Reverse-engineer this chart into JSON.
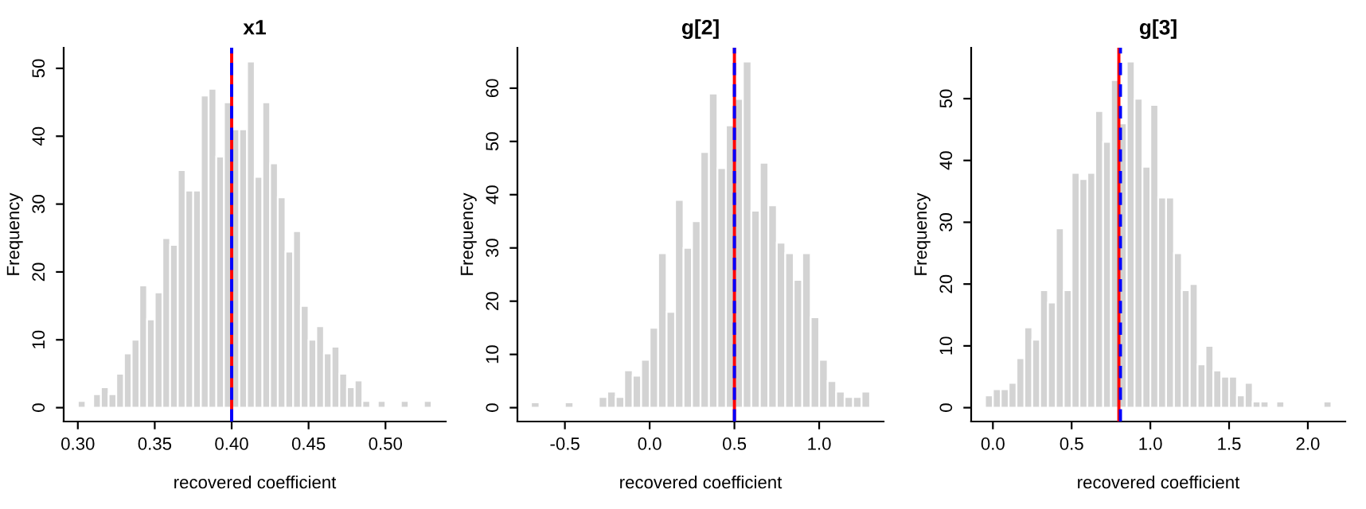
{
  "chart_data": [
    {
      "type": "histogram",
      "title": "x1",
      "xlabel": "recovered coefficient",
      "ylabel": "Frequency",
      "color": "#d3d3d3",
      "bins": [
        0.3,
        0.305,
        0.31,
        0.315,
        0.32,
        0.325,
        0.33,
        0.335,
        0.34,
        0.345,
        0.35,
        0.355,
        0.36,
        0.365,
        0.37,
        0.375,
        0.38,
        0.385,
        0.39,
        0.395,
        0.4,
        0.405,
        0.41,
        0.415,
        0.42,
        0.425,
        0.43,
        0.435,
        0.44,
        0.445,
        0.45,
        0.455,
        0.46,
        0.465,
        0.47,
        0.475,
        0.48,
        0.485,
        0.49,
        0.495,
        0.5,
        0.505,
        0.51,
        0.515,
        0.52,
        0.525,
        0.53
      ],
      "values": [
        1,
        0,
        2,
        3,
        2,
        5,
        8,
        10,
        18,
        13,
        17,
        25,
        24,
        35,
        32,
        32,
        46,
        47,
        37,
        45,
        41,
        41,
        51,
        34,
        45,
        36,
        31,
        23,
        26,
        15,
        10,
        12,
        8,
        9,
        5,
        3,
        4,
        1,
        0,
        1,
        0,
        0,
        1,
        0,
        0,
        1
      ],
      "xlim": [
        0.2908,
        0.5392
      ],
      "ylim": [
        -2.04,
        53.04
      ],
      "xticks": [
        {
          "value": 0.3,
          "label": "0.30"
        },
        {
          "value": 0.35,
          "label": "0.35"
        },
        {
          "value": 0.4,
          "label": "0.40"
        },
        {
          "value": 0.45,
          "label": "0.45"
        },
        {
          "value": 0.5,
          "label": "0.50"
        }
      ],
      "yticks": [
        0,
        10,
        20,
        30,
        40,
        50
      ],
      "ref_lines": [
        {
          "axis": "x",
          "value": 0.4,
          "color": "#ff0000",
          "line_style": "solid"
        },
        {
          "axis": "x",
          "value": 0.4,
          "color": "#0000ff",
          "line_style": "dashed"
        }
      ]
    },
    {
      "type": "histogram",
      "title": "g[2]",
      "xlabel": "recovered coefficient",
      "ylabel": "Frequency",
      "color": "#d3d3d3",
      "bins": [
        -0.7,
        -0.65,
        -0.6,
        -0.55,
        -0.5,
        -0.45,
        -0.4,
        -0.35,
        -0.3,
        -0.25,
        -0.2,
        -0.15,
        -0.1,
        -0.05,
        0,
        0.05,
        0.1,
        0.15,
        0.2,
        0.25,
        0.3,
        0.35,
        0.4,
        0.45,
        0.5,
        0.55,
        0.6,
        0.65,
        0.7,
        0.75,
        0.8,
        0.85,
        0.9,
        0.95,
        1,
        1.05,
        1.1,
        1.15,
        1.2,
        1.25,
        1.3
      ],
      "values": [
        1,
        0,
        0,
        0,
        1,
        0,
        0,
        0,
        2,
        3,
        2,
        7,
        6,
        9,
        15,
        29,
        18,
        39,
        30,
        35,
        48,
        59,
        45,
        53,
        58,
        65,
        37,
        46,
        38,
        31,
        29,
        24,
        29,
        17,
        9,
        5,
        3,
        2,
        2,
        3
      ],
      "xlim": [
        -0.78,
        1.38
      ],
      "ylim": [
        -2.6,
        67.6
      ],
      "xticks": [
        {
          "value": -0.5,
          "label": "-0.5"
        },
        {
          "value": 0,
          "label": "0.0"
        },
        {
          "value": 0.5,
          "label": "0.5"
        },
        {
          "value": 1,
          "label": "1.0"
        }
      ],
      "yticks": [
        0,
        10,
        20,
        30,
        40,
        50,
        60
      ],
      "ref_lines": [
        {
          "axis": "x",
          "value": 0.5,
          "color": "#ff0000",
          "line_style": "solid"
        },
        {
          "axis": "x",
          "value": 0.5,
          "color": "#0000ff",
          "line_style": "dashed"
        }
      ]
    },
    {
      "type": "histogram",
      "title": "g[3]",
      "xlabel": "recovered coefficient",
      "ylabel": "Frequency",
      "color": "#d3d3d3",
      "bins": [
        -0.05,
        0,
        0.05,
        0.1,
        0.15,
        0.2,
        0.25,
        0.3,
        0.35,
        0.4,
        0.45,
        0.5,
        0.55,
        0.6,
        0.65,
        0.7,
        0.75,
        0.8,
        0.85,
        0.9,
        0.95,
        1,
        1.05,
        1.1,
        1.15,
        1.2,
        1.25,
        1.3,
        1.35,
        1.4,
        1.45,
        1.5,
        1.55,
        1.6,
        1.65,
        1.7,
        1.75,
        1.8,
        1.85,
        1.9,
        1.95,
        2,
        2.05,
        2.1,
        2.15
      ],
      "values": [
        2,
        3,
        3,
        4,
        8,
        13,
        11,
        19,
        17,
        29,
        19,
        38,
        37,
        38,
        48,
        43,
        53,
        46,
        56,
        50,
        39,
        49,
        34,
        34,
        25,
        19,
        20,
        7,
        10,
        6,
        5,
        5,
        2,
        4,
        1,
        1,
        0,
        1,
        0,
        0,
        0,
        0,
        0,
        1
      ],
      "xlim": [
        -0.138,
        2.238
      ],
      "ylim": [
        -2.24,
        58.24
      ],
      "xticks": [
        {
          "value": 0,
          "label": "0.0"
        },
        {
          "value": 0.5,
          "label": "0.5"
        },
        {
          "value": 1,
          "label": "1.0"
        },
        {
          "value": 1.5,
          "label": "1.5"
        },
        {
          "value": 2,
          "label": "2.0"
        }
      ],
      "yticks": [
        0,
        10,
        20,
        30,
        40,
        50
      ],
      "ref_lines": [
        {
          "axis": "x",
          "value": 0.8,
          "color": "#ff0000",
          "line_style": "solid"
        },
        {
          "axis": "x",
          "value": 0.81,
          "color": "#0000ff",
          "line_style": "dashed"
        }
      ]
    }
  ]
}
